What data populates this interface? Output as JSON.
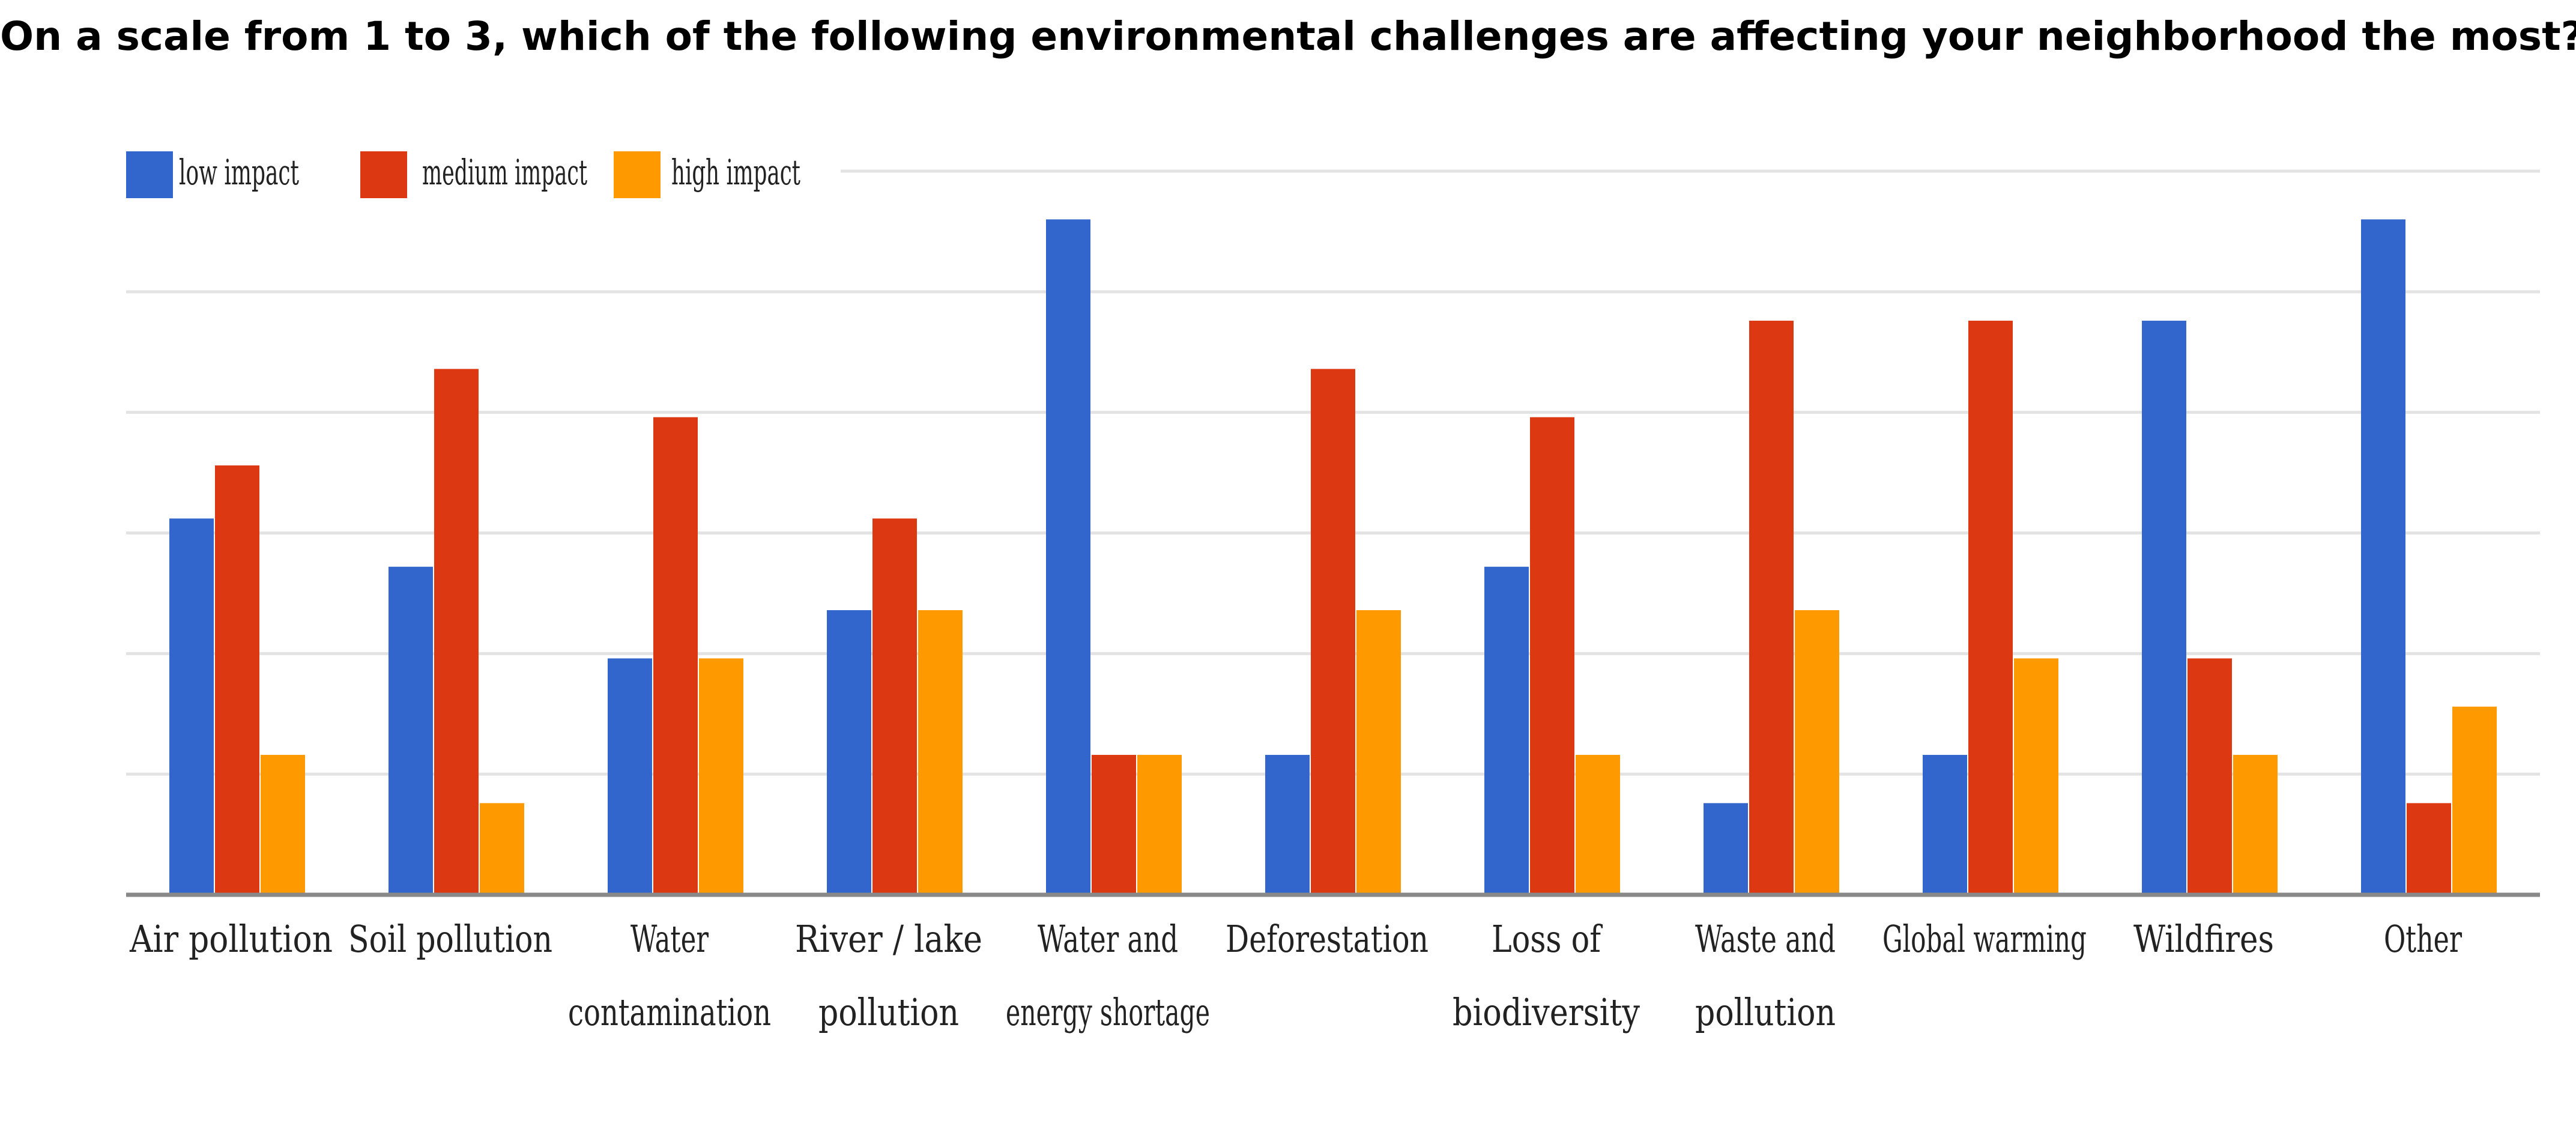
{
  "chart_data": {
    "type": "bar",
    "title": "On a scale from 1 to 3, which of the following environmental challenges are affecting your neighborhood the most?",
    "categories": [
      [
        "Air pollution"
      ],
      [
        "Soil pollution"
      ],
      [
        "Water",
        "contamination"
      ],
      [
        "River / lake",
        "pollution"
      ],
      [
        "Water and",
        "energy shortage"
      ],
      [
        "Deforestation"
      ],
      [
        "Loss of",
        "biodiversity"
      ],
      [
        "Waste and",
        "pollution"
      ],
      [
        "Global warming"
      ],
      [
        "Wildfires"
      ],
      [
        "Other"
      ]
    ],
    "series": [
      {
        "name": "low impact",
        "color": "#3366CC",
        "values": [
          7.8,
          6.8,
          4.9,
          5.9,
          14.0,
          2.9,
          6.8,
          1.9,
          2.9,
          11.9,
          14.0
        ]
      },
      {
        "name": "medium impact",
        "color": "#DC3912",
        "values": [
          8.9,
          10.9,
          9.9,
          7.8,
          2.9,
          10.9,
          9.9,
          11.9,
          11.9,
          4.9,
          1.9
        ]
      },
      {
        "name": "high impact",
        "color": "#FF9900",
        "values": [
          2.9,
          1.9,
          4.9,
          5.9,
          2.9,
          5.9,
          2.9,
          5.9,
          4.9,
          2.9,
          3.9
        ]
      }
    ],
    "ylim": [
      0,
      15
    ],
    "gridlines": [
      2.5,
      5,
      7.5,
      10,
      12.5,
      15
    ],
    "legend_position": "top-left",
    "xlabel": "",
    "ylabel": ""
  }
}
